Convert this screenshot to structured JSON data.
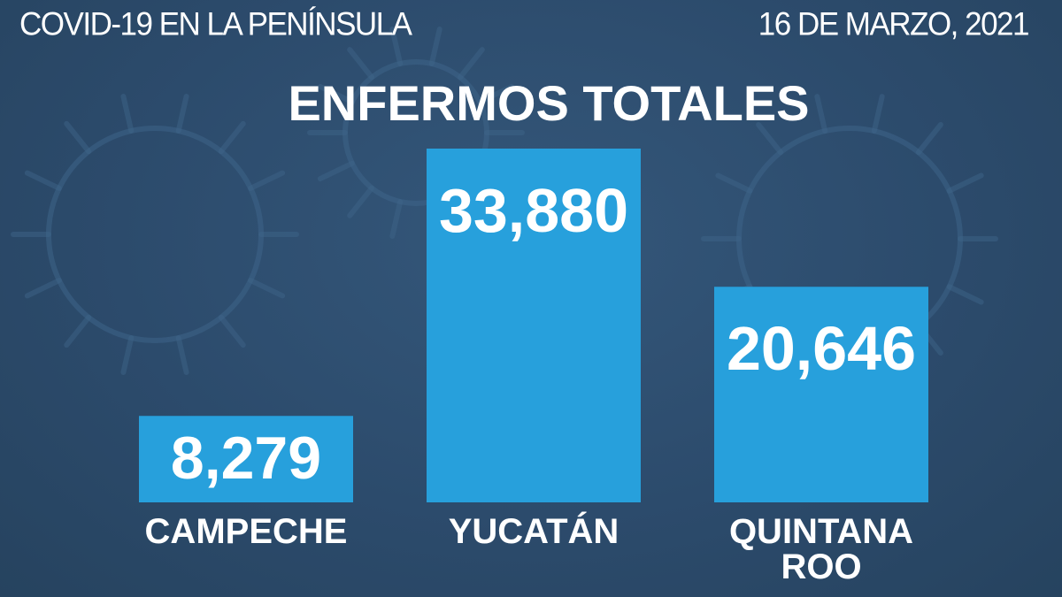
{
  "header": {
    "left": "COVID-19 EN LA PENÍNSULA",
    "right": "16 DE MARZO, 2021"
  },
  "colors": {
    "background": "#2c4b6c",
    "bar": "#27a0dc",
    "text": "#ffffff"
  },
  "chart_data": {
    "type": "bar",
    "title": "ENFERMOS TOTALES",
    "categories": [
      "CAMPECHE",
      "YUCATÁN",
      "QUINTANA ROO"
    ],
    "category_lines": [
      [
        "CAMPECHE"
      ],
      [
        "YUCATÁN"
      ],
      [
        "QUINTANA",
        "ROO"
      ]
    ],
    "values": [
      8279,
      33880,
      20646
    ],
    "value_labels": [
      "8,279",
      "33,880",
      "20,646"
    ],
    "ylim": [
      0,
      33880
    ],
    "grid": false,
    "legend": "none"
  }
}
